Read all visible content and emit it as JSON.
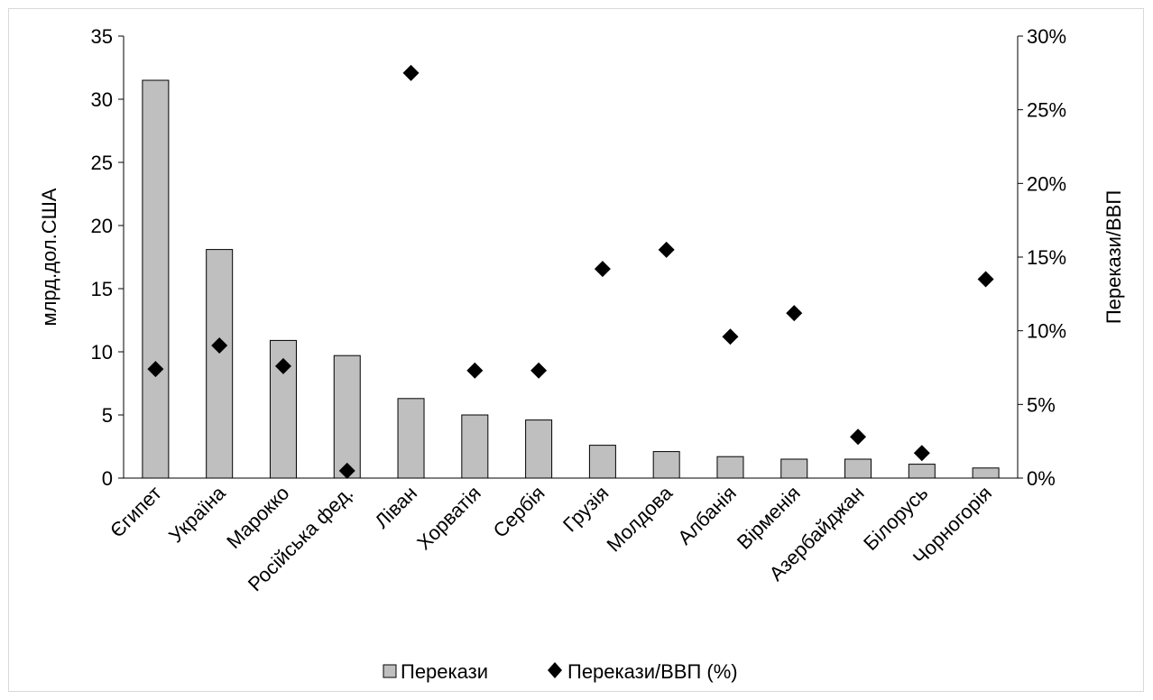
{
  "chart_data": {
    "type": "bar",
    "categories": [
      "Єгипет",
      "Україна",
      "Марокко",
      "Російська фед.",
      "Ліван",
      "Хорватія",
      "Сербія",
      "Грузія",
      "Молдова",
      "Албанія",
      "Вірменія",
      "Азербайджан",
      "Білорусь",
      "Чорногорія"
    ],
    "series": [
      {
        "name": "Перекази",
        "type": "bar",
        "axis": "left",
        "color": "#bfbfbf",
        "values": [
          31.5,
          18.1,
          10.9,
          9.7,
          6.3,
          5.0,
          4.6,
          2.6,
          2.1,
          1.7,
          1.5,
          1.5,
          1.1,
          0.8
        ]
      },
      {
        "name": "Перекази/ВВП (%)",
        "type": "scatter",
        "axis": "right",
        "marker": "diamond",
        "color": "#000000",
        "values": [
          7.4,
          9.0,
          7.6,
          0.5,
          27.5,
          7.3,
          7.3,
          14.2,
          15.5,
          9.6,
          11.2,
          2.8,
          1.7,
          13.5
        ]
      }
    ],
    "ylabel": "млрд.дол.США",
    "y2label": "Перекази/ВВП",
    "ylim": [
      0,
      35
    ],
    "y2lim": [
      0,
      30
    ],
    "yticks": [
      "0",
      "5",
      "10",
      "15",
      "20",
      "25",
      "30",
      "35"
    ],
    "y2ticks": [
      "0%",
      "5%",
      "10%",
      "15%",
      "20%",
      "25%",
      "30%"
    ],
    "grid": false,
    "legend": "bottom"
  }
}
